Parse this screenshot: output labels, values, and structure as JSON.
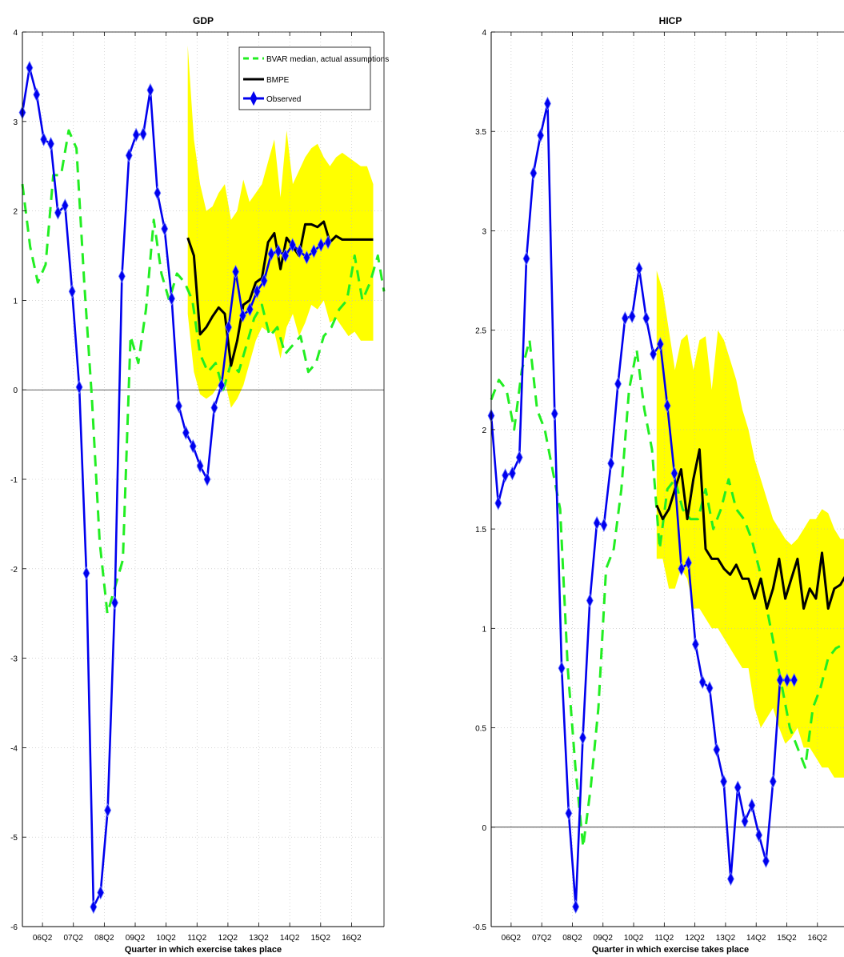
{
  "colors": {
    "band": "#ffff00",
    "bvar": "#22ee22",
    "bmpe": "#000000",
    "observed": "#0000ee",
    "grid": "#bbbbbb",
    "zero_line": "#000000"
  },
  "chart_data": [
    {
      "type": "line",
      "title": "GDP",
      "xlabel": "Quarter in which exercise takes place",
      "ylabel": "",
      "grid": true,
      "legend_position": "top-right",
      "xlim": [
        2005.6,
        2017.3
      ],
      "ylim": [
        -6,
        4
      ],
      "x_ticks": [
        2006.25,
        2007.25,
        2008.25,
        2009.25,
        2010.25,
        2011.25,
        2012.25,
        2013.25,
        2014.25,
        2015.25,
        2016.25
      ],
      "x_tick_labels": [
        "06Q2",
        "07Q2",
        "08Q2",
        "09Q2",
        "10Q2",
        "11Q2",
        "12Q2",
        "13Q2",
        "14Q2",
        "15Q2",
        "16Q2"
      ],
      "y_ticks": [
        -6,
        -5,
        -4,
        -3,
        -2,
        -1,
        0,
        1,
        2,
        3,
        4
      ],
      "y_tick_labels": [
        "-6",
        "-5",
        "-4",
        "-3",
        "-2",
        "-1",
        "0",
        "1",
        "2",
        "3",
        "4"
      ],
      "series": [
        {
          "name": "BVAR median, actual assumptions",
          "style": "dashed",
          "x": [
            2005.6,
            2005.85,
            2006.1,
            2006.35,
            2006.6,
            2006.85,
            2007.1,
            2007.35,
            2007.6,
            2007.85,
            2008.1,
            2008.35,
            2008.6,
            2008.85,
            2009.1,
            2009.35,
            2009.6,
            2009.85,
            2010.1,
            2010.35,
            2010.6,
            2010.85,
            2011.1,
            2011.35,
            2011.6,
            2011.85,
            2012.1,
            2012.35,
            2012.6,
            2012.85,
            2013.1,
            2013.35,
            2013.6,
            2013.85,
            2014.1,
            2014.35,
            2014.6,
            2014.85,
            2015.1,
            2015.35,
            2015.6,
            2015.85,
            2016.1,
            2016.35,
            2016.6,
            2016.85,
            2017.1,
            2017.3
          ],
          "values": [
            2.3,
            1.6,
            1.2,
            1.4,
            2.4,
            2.4,
            2.9,
            2.7,
            1.2,
            -0.1,
            -1.7,
            -2.5,
            -2.2,
            -1.9,
            0.6,
            0.3,
            0.9,
            1.9,
            1.3,
            1.0,
            1.3,
            1.2,
            1.0,
            0.4,
            0.2,
            0.3,
            0.0,
            0.3,
            0.2,
            0.5,
            0.8,
            0.95,
            0.6,
            0.7,
            0.4,
            0.5,
            0.6,
            0.2,
            0.3,
            0.6,
            0.7,
            0.9,
            1.0,
            1.5,
            1.0,
            1.2,
            1.5,
            1.1
          ]
        },
        {
          "name": "BMPE",
          "style": "solid",
          "x": [
            2010.95,
            2011.15,
            2011.35,
            2011.55,
            2011.75,
            2011.95,
            2012.15,
            2012.35,
            2012.55,
            2012.75,
            2012.95,
            2013.15,
            2013.35,
            2013.55,
            2013.75,
            2013.95,
            2014.15,
            2014.35,
            2014.55,
            2014.75,
            2014.95,
            2015.15,
            2015.35,
            2015.55,
            2015.75,
            2015.95,
            2016.15,
            2016.35,
            2016.55,
            2016.75,
            2016.95
          ],
          "values": [
            1.7,
            1.5,
            0.62,
            0.7,
            0.82,
            0.92,
            0.85,
            0.27,
            0.55,
            0.95,
            1.0,
            1.2,
            1.25,
            1.65,
            1.75,
            1.35,
            1.7,
            1.6,
            1.5,
            1.85,
            1.85,
            1.82,
            1.88,
            1.65,
            1.72,
            1.68,
            1.68,
            1.68,
            1.68,
            1.68,
            1.68
          ]
        },
        {
          "name": "Observed",
          "style": "solid-markers",
          "x": [
            2005.6,
            2005.83,
            2006.06,
            2006.29,
            2006.52,
            2006.75,
            2006.98,
            2007.21,
            2007.44,
            2007.67,
            2007.9,
            2008.13,
            2008.36,
            2008.59,
            2008.82,
            2009.05,
            2009.28,
            2009.51,
            2009.74,
            2009.97,
            2010.2,
            2010.43,
            2010.66,
            2010.89,
            2011.12,
            2011.35,
            2011.58,
            2011.81,
            2012.04,
            2012.27,
            2012.5,
            2012.73,
            2012.96,
            2013.19,
            2013.42,
            2013.65,
            2013.88,
            2014.11,
            2014.34,
            2014.57,
            2014.8,
            2015.03,
            2015.26,
            2015.49
          ],
          "values": [
            3.1,
            3.6,
            3.3,
            2.8,
            2.75,
            1.98,
            2.06,
            1.1,
            0.03,
            -2.05,
            -5.78,
            -5.62,
            -4.7,
            -2.38,
            1.27,
            2.62,
            2.85,
            2.86,
            3.35,
            2.2,
            1.8,
            1.02,
            -0.18,
            -0.48,
            -0.63,
            -0.85,
            -1.0,
            -0.2,
            0.05,
            0.7,
            1.32,
            0.83,
            0.9,
            1.1,
            1.22,
            1.52,
            1.55,
            1.5,
            1.62,
            1.55,
            1.48,
            1.55,
            1.62,
            1.65
          ]
        }
      ],
      "band": {
        "x": [
          2010.95,
          2011.15,
          2011.35,
          2011.55,
          2011.75,
          2011.95,
          2012.15,
          2012.35,
          2012.55,
          2012.75,
          2012.95,
          2013.15,
          2013.35,
          2013.55,
          2013.75,
          2013.95,
          2014.15,
          2014.35,
          2014.55,
          2014.75,
          2014.95,
          2015.15,
          2015.35,
          2015.55,
          2015.75,
          2015.95,
          2016.15,
          2016.35,
          2016.55,
          2016.75,
          2016.95
        ],
        "upper": [
          3.85,
          2.8,
          2.3,
          2.0,
          2.05,
          2.2,
          2.3,
          1.9,
          2.0,
          2.35,
          2.1,
          2.2,
          2.3,
          2.55,
          2.8,
          2.15,
          2.9,
          2.3,
          2.45,
          2.6,
          2.7,
          2.75,
          2.6,
          2.5,
          2.6,
          2.65,
          2.6,
          2.55,
          2.5,
          2.5,
          2.3
        ],
        "lower": [
          0.85,
          0.2,
          -0.05,
          -0.1,
          -0.05,
          0.05,
          0.1,
          -0.2,
          -0.1,
          0.05,
          0.3,
          0.55,
          0.7,
          0.65,
          0.65,
          0.35,
          0.7,
          0.85,
          0.6,
          0.75,
          0.95,
          0.9,
          1.0,
          0.75,
          0.8,
          0.7,
          0.6,
          0.65,
          0.55,
          0.55,
          0.55
        ]
      }
    },
    {
      "type": "line",
      "title": "HICP",
      "xlabel": "Quarter in which exercise takes place",
      "ylabel": "",
      "grid": true,
      "xlim": [
        2005.6,
        2017.3
      ],
      "ylim": [
        -0.5,
        4
      ],
      "x_ticks": [
        2006.25,
        2007.25,
        2008.25,
        2009.25,
        2010.25,
        2011.25,
        2012.25,
        2013.25,
        2014.25,
        2015.25,
        2016.25
      ],
      "x_tick_labels": [
        "06Q2",
        "07Q2",
        "08Q2",
        "09Q2",
        "10Q2",
        "11Q2",
        "12Q2",
        "13Q2",
        "14Q2",
        "15Q2",
        "16Q2"
      ],
      "y_ticks": [
        -0.5,
        0,
        0.5,
        1,
        1.5,
        2,
        2.5,
        3,
        3.5,
        4
      ],
      "y_tick_labels": [
        "-0.5",
        "0",
        "0.5",
        "1",
        "1.5",
        "2",
        "2.5",
        "3",
        "3.5",
        "4"
      ],
      "series": [
        {
          "name": "BVAR median, actual assumptions",
          "style": "dashed",
          "x": [
            2005.6,
            2005.85,
            2006.1,
            2006.35,
            2006.6,
            2006.85,
            2007.1,
            2007.35,
            2007.6,
            2007.85,
            2008.1,
            2008.35,
            2008.6,
            2008.85,
            2009.1,
            2009.35,
            2009.6,
            2009.85,
            2010.1,
            2010.35,
            2010.6,
            2010.85,
            2011.1,
            2011.35,
            2011.6,
            2011.85,
            2012.1,
            2012.35,
            2012.6,
            2012.85,
            2013.1,
            2013.35,
            2013.6,
            2013.85,
            2014.1,
            2014.35,
            2014.6,
            2014.85,
            2015.1,
            2015.35,
            2015.6,
            2015.85,
            2016.1,
            2016.35,
            2016.6,
            2016.85,
            2017.1,
            2017.3
          ],
          "values": [
            2.15,
            2.25,
            2.2,
            2.0,
            2.3,
            2.45,
            2.1,
            2.0,
            1.8,
            1.6,
            0.8,
            0.3,
            -0.1,
            0.2,
            0.6,
            1.3,
            1.4,
            1.7,
            2.2,
            2.4,
            2.1,
            1.9,
            1.4,
            1.7,
            1.75,
            1.6,
            1.55,
            1.55,
            1.7,
            1.5,
            1.6,
            1.75,
            1.6,
            1.55,
            1.45,
            1.3,
            1.1,
            0.9,
            0.7,
            0.5,
            0.4,
            0.3,
            0.6,
            0.7,
            0.85,
            0.9,
            0.92,
            0.95
          ]
        },
        {
          "name": "BMPE",
          "style": "solid",
          "x": [
            2011.0,
            2011.2,
            2011.4,
            2011.6,
            2011.8,
            2012.0,
            2012.2,
            2012.4,
            2012.6,
            2012.8,
            2013.0,
            2013.2,
            2013.4,
            2013.6,
            2013.8,
            2014.0,
            2014.2,
            2014.4,
            2014.6,
            2014.8,
            2015.0,
            2015.2,
            2015.4,
            2015.6,
            2015.8,
            2016.0,
            2016.2,
            2016.4,
            2016.6,
            2016.8,
            2017.0,
            2017.3
          ],
          "values": [
            1.62,
            1.55,
            1.6,
            1.7,
            1.8,
            1.55,
            1.75,
            1.9,
            1.4,
            1.35,
            1.35,
            1.3,
            1.27,
            1.32,
            1.25,
            1.25,
            1.15,
            1.25,
            1.1,
            1.2,
            1.35,
            1.15,
            1.25,
            1.35,
            1.1,
            1.2,
            1.15,
            1.38,
            1.1,
            1.2,
            1.22,
            1.3
          ]
        },
        {
          "name": "Observed",
          "style": "solid-markers",
          "x": [
            2005.6,
            2005.83,
            2006.06,
            2006.29,
            2006.52,
            2006.75,
            2006.98,
            2007.21,
            2007.44,
            2007.67,
            2007.9,
            2008.13,
            2008.36,
            2008.59,
            2008.82,
            2009.05,
            2009.28,
            2009.51,
            2009.74,
            2009.97,
            2010.2,
            2010.43,
            2010.66,
            2010.89,
            2011.12,
            2011.35,
            2011.58,
            2011.81,
            2012.04,
            2012.27,
            2012.5,
            2012.73,
            2012.96,
            2013.19,
            2013.42,
            2013.65,
            2013.88,
            2014.11,
            2014.34,
            2014.57,
            2014.8,
            2015.03,
            2015.26,
            2015.49
          ],
          "values": [
            2.07,
            1.63,
            1.77,
            1.78,
            1.86,
            2.86,
            3.29,
            3.48,
            3.64,
            2.08,
            0.8,
            0.07,
            -0.4,
            0.45,
            1.14,
            1.53,
            1.52,
            1.83,
            2.23,
            2.56,
            2.57,
            2.81,
            2.56,
            2.38,
            2.43,
            2.12,
            1.78,
            1.3,
            1.33,
            0.92,
            0.73,
            0.7,
            0.39,
            0.23,
            -0.26,
            0.2,
            0.03,
            0.11,
            -0.04,
            -0.17,
            0.23,
            0.74,
            0.74,
            0.74
          ]
        }
      ],
      "band": {
        "x": [
          2011.0,
          2011.2,
          2011.4,
          2011.6,
          2011.8,
          2012.0,
          2012.2,
          2012.4,
          2012.6,
          2012.8,
          2013.0,
          2013.2,
          2013.4,
          2013.6,
          2013.8,
          2014.0,
          2014.2,
          2014.4,
          2014.6,
          2014.8,
          2015.0,
          2015.2,
          2015.4,
          2015.6,
          2015.8,
          2016.0,
          2016.2,
          2016.4,
          2016.6,
          2016.8,
          2017.0,
          2017.3
        ],
        "upper": [
          2.8,
          2.7,
          2.5,
          2.3,
          2.45,
          2.48,
          2.3,
          2.45,
          2.47,
          2.2,
          2.5,
          2.45,
          2.35,
          2.25,
          2.1,
          2.0,
          1.85,
          1.75,
          1.65,
          1.55,
          1.5,
          1.45,
          1.42,
          1.45,
          1.5,
          1.55,
          1.55,
          1.6,
          1.58,
          1.5,
          1.45,
          1.45
        ],
        "lower": [
          1.35,
          1.35,
          1.2,
          1.2,
          1.3,
          1.25,
          1.1,
          1.1,
          1.05,
          1.0,
          1.0,
          0.95,
          0.9,
          0.85,
          0.8,
          0.8,
          0.6,
          0.5,
          0.55,
          0.6,
          0.5,
          0.42,
          0.45,
          0.5,
          0.4,
          0.4,
          0.35,
          0.3,
          0.3,
          0.25,
          0.25,
          0.25
        ]
      }
    }
  ]
}
